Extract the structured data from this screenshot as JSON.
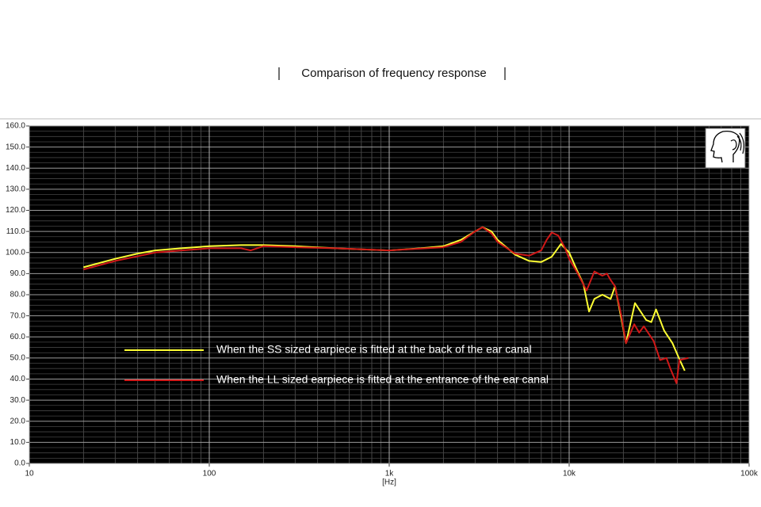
{
  "chart_data": {
    "type": "line",
    "title": "Comparison of frequency response",
    "x_label": "[Hz]",
    "x_log": true,
    "grid": true,
    "xlim": [
      10,
      100000
    ],
    "xticks": [
      {
        "value": 10,
        "label": "10"
      },
      {
        "value": 100,
        "label": "100"
      },
      {
        "value": 1000,
        "label": "1k"
      },
      {
        "value": 10000,
        "label": "10k"
      },
      {
        "value": 100000,
        "label": "100k"
      }
    ],
    "ylim": [
      0,
      160
    ],
    "yticks": [
      {
        "value": 0,
        "label": "0.0"
      },
      {
        "value": 10,
        "label": "10.0"
      },
      {
        "value": 20,
        "label": "20.0"
      },
      {
        "value": 30,
        "label": "30.0"
      },
      {
        "value": 40,
        "label": "40.0"
      },
      {
        "value": 50,
        "label": "50.0"
      },
      {
        "value": 60,
        "label": "60.0"
      },
      {
        "value": 70,
        "label": "70.0"
      },
      {
        "value": 80,
        "label": "80.0"
      },
      {
        "value": 90,
        "label": "90.0"
      },
      {
        "value": 100,
        "label": "100.0"
      },
      {
        "value": 110,
        "label": "110.0"
      },
      {
        "value": 120,
        "label": "120.0"
      },
      {
        "value": 130,
        "label": "130.0"
      },
      {
        "value": 140,
        "label": "140.0"
      },
      {
        "value": 150,
        "label": "150.0"
      },
      {
        "value": 160,
        "label": "160.0"
      }
    ],
    "series": [
      {
        "name": "When the SS sized earpiece is fitted at the back of the ear canal",
        "color": "#ffff33",
        "x": [
          20,
          30,
          40,
          50,
          70,
          100,
          150,
          200,
          300,
          500,
          700,
          1000,
          1500,
          2000,
          2500,
          3000,
          3300,
          3700,
          4000,
          5000,
          6000,
          7000,
          8000,
          9000,
          10000,
          11000,
          12000,
          12900,
          13800,
          15300,
          17000,
          18000,
          20700,
          23200,
          26800,
          28600,
          30400,
          33700,
          37500,
          40700,
          43900
        ],
        "values": [
          93,
          97,
          99.5,
          101,
          102,
          103,
          103.5,
          103.5,
          103,
          102,
          101.5,
          101,
          102,
          103,
          106,
          110,
          112,
          110,
          106,
          99,
          96,
          95.5,
          98,
          104,
          100,
          92,
          85,
          72,
          78,
          80,
          78,
          84,
          57,
          76,
          68,
          67,
          73,
          63,
          57,
          50,
          44
        ]
      },
      {
        "name": "When the LL sized earpiece is fitted at the entrance of the ear canal",
        "color": "#d01818",
        "x": [
          20,
          30,
          50,
          100,
          150,
          170,
          200,
          300,
          500,
          1000,
          2000,
          2500,
          3000,
          3300,
          3700,
          4000,
          5000,
          6000,
          7000,
          7500,
          8000,
          8700,
          9500,
          10000,
          11000,
          12500,
          13800,
          15300,
          16200,
          17000,
          18000,
          19500,
          20700,
          23000,
          24500,
          26000,
          29500,
          32000,
          34700,
          36500,
          39500,
          41000,
          46000
        ],
        "values": [
          92,
          96,
          100,
          102,
          102,
          101,
          103,
          102.5,
          102,
          101,
          102.5,
          105,
          110,
          112,
          109,
          105,
          99.5,
          98.5,
          101,
          106,
          109.5,
          108,
          102,
          97,
          91,
          82,
          91,
          89,
          90,
          87,
          84,
          70,
          57,
          66,
          62,
          65,
          58,
          49,
          50,
          45,
          38,
          49,
          50
        ]
      }
    ]
  }
}
